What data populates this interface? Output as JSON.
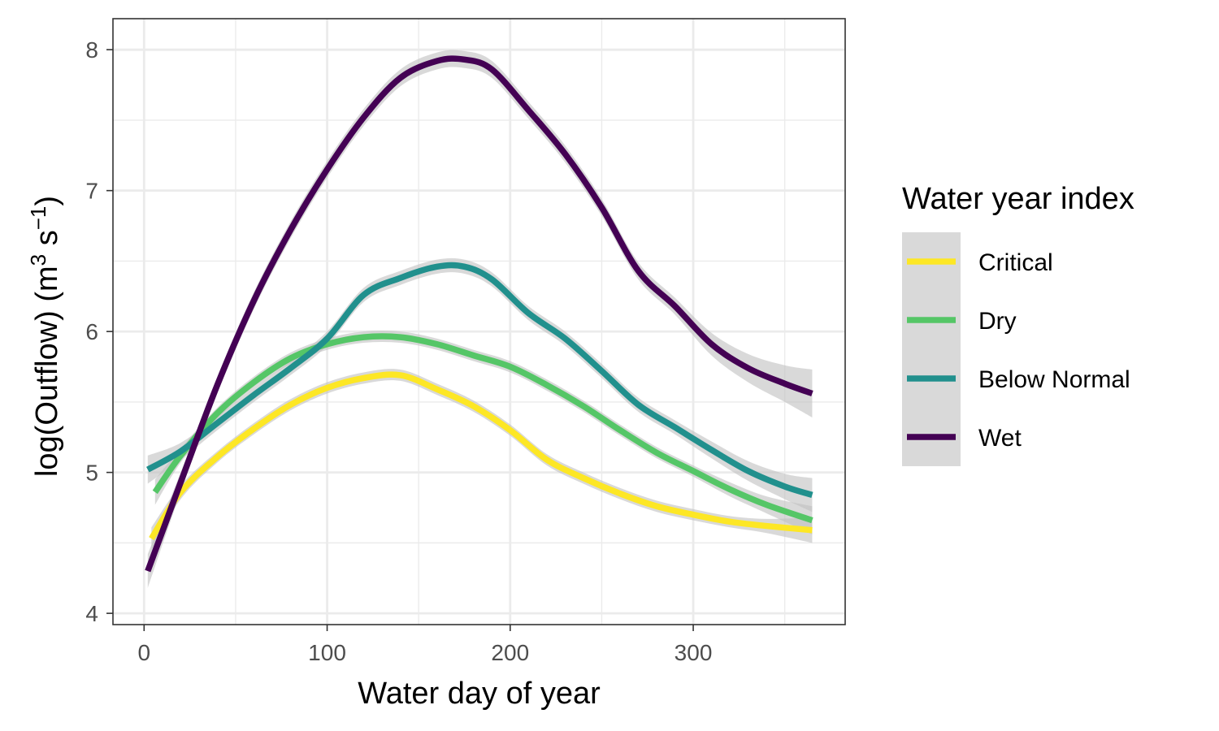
{
  "chart_data": {
    "type": "line",
    "xlabel": "Water day of year",
    "ylabel_main": "log(Outflow) (m",
    "ylabel_sup1": "3",
    "ylabel_mid": " s",
    "ylabel_sup2": "−1",
    "ylabel_end": ")",
    "xlim": [
      -17,
      383
    ],
    "ylim": [
      3.92,
      8.22
    ],
    "xticks": [
      0,
      100,
      200,
      300
    ],
    "yticks": [
      4,
      5,
      6,
      7,
      8
    ],
    "xtick_labels": [
      "0",
      "100",
      "200",
      "300"
    ],
    "ytick_labels": [
      "4",
      "5",
      "6",
      "7",
      "8"
    ],
    "grid": true,
    "confidence_band_color": "#bfbfbf",
    "legend": {
      "title": "Water year index",
      "position": "right"
    },
    "series": [
      {
        "name": "Critical",
        "color": "#fde725",
        "x": [
          4,
          20,
          40,
          60,
          80,
          100,
          120,
          140,
          160,
          180,
          200,
          220,
          240,
          260,
          280,
          300,
          320,
          340,
          365
        ],
        "y": [
          4.53,
          4.86,
          5.11,
          5.31,
          5.48,
          5.6,
          5.67,
          5.69,
          5.59,
          5.47,
          5.3,
          5.09,
          4.96,
          4.85,
          4.76,
          4.7,
          4.65,
          4.62,
          4.59
        ],
        "band": [
          0.08,
          0.05,
          0.04,
          0.04,
          0.04,
          0.04,
          0.04,
          0.04,
          0.04,
          0.04,
          0.04,
          0.04,
          0.04,
          0.04,
          0.04,
          0.04,
          0.04,
          0.05,
          0.09
        ]
      },
      {
        "name": "Dry",
        "color": "#55c667",
        "x": [
          6,
          20,
          40,
          60,
          80,
          100,
          120,
          140,
          160,
          180,
          200,
          220,
          240,
          260,
          280,
          300,
          320,
          340,
          365
        ],
        "y": [
          4.86,
          5.12,
          5.42,
          5.64,
          5.81,
          5.91,
          5.96,
          5.96,
          5.91,
          5.83,
          5.75,
          5.62,
          5.47,
          5.3,
          5.14,
          5.01,
          4.88,
          4.77,
          4.66
        ],
        "band": [
          0.09,
          0.05,
          0.04,
          0.04,
          0.04,
          0.04,
          0.04,
          0.04,
          0.04,
          0.04,
          0.04,
          0.04,
          0.04,
          0.04,
          0.04,
          0.04,
          0.05,
          0.06,
          0.1
        ]
      },
      {
        "name": "Below Normal",
        "color": "#21908d",
        "x": [
          2,
          20,
          40,
          60,
          80,
          100,
          120,
          140,
          160,
          175,
          190,
          210,
          230,
          250,
          270,
          290,
          310,
          330,
          350,
          365
        ],
        "y": [
          5.02,
          5.15,
          5.35,
          5.55,
          5.74,
          5.95,
          6.26,
          6.38,
          6.46,
          6.46,
          6.37,
          6.13,
          5.95,
          5.72,
          5.48,
          5.32,
          5.16,
          5.01,
          4.9,
          4.84
        ],
        "band": [
          0.1,
          0.06,
          0.05,
          0.05,
          0.05,
          0.05,
          0.05,
          0.05,
          0.05,
          0.05,
          0.05,
          0.05,
          0.05,
          0.05,
          0.05,
          0.05,
          0.06,
          0.07,
          0.09,
          0.12
        ]
      },
      {
        "name": "Wet",
        "color": "#440154",
        "x": [
          2,
          20,
          40,
          60,
          80,
          100,
          120,
          140,
          160,
          175,
          190,
          210,
          230,
          250,
          270,
          290,
          310,
          330,
          350,
          365
        ],
        "y": [
          4.3,
          4.93,
          5.62,
          6.22,
          6.72,
          7.15,
          7.52,
          7.8,
          7.92,
          7.93,
          7.86,
          7.57,
          7.26,
          6.88,
          6.43,
          6.18,
          5.91,
          5.74,
          5.63,
          5.56
        ],
        "band": [
          0.12,
          0.07,
          0.06,
          0.06,
          0.06,
          0.06,
          0.06,
          0.06,
          0.06,
          0.06,
          0.06,
          0.06,
          0.06,
          0.06,
          0.06,
          0.06,
          0.08,
          0.1,
          0.13,
          0.17
        ]
      }
    ]
  }
}
